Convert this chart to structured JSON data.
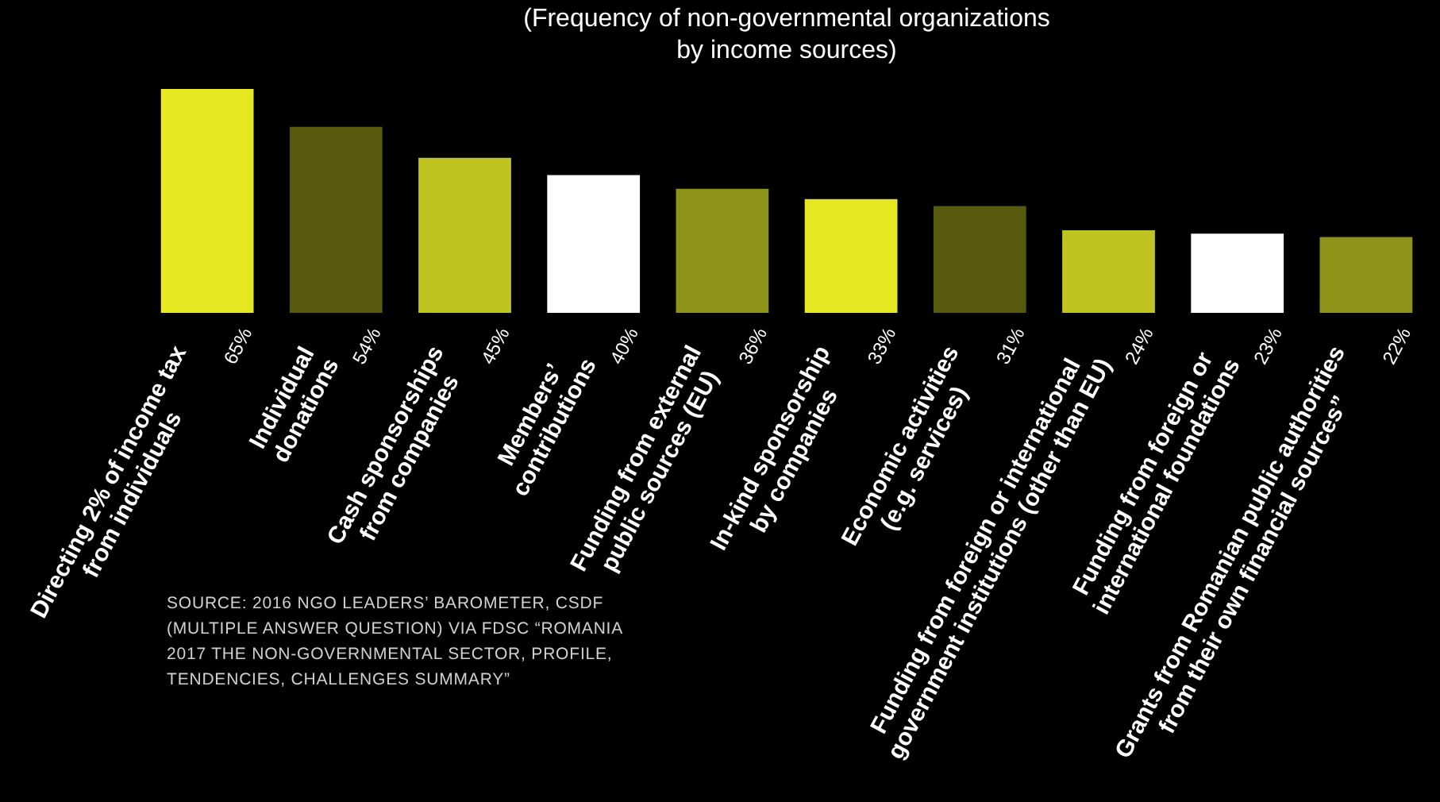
{
  "chart_data": {
    "type": "bar",
    "subtitle": "(Frequency of non-governmental organizations\nby income sources)",
    "categories": [
      "Directing 2% of income tax\nfrom individuals",
      "Individual\ndonations",
      "Cash sponsorships\nfrom companies",
      "Members’\ncontributions",
      "Funding from external\npublic sources (EU)",
      "In-kind sponsorship\nby companies",
      "Economic activities\n(e.g. services)",
      "Funding from foreign or international\ngovernment institutions (other than EU)",
      "Funding from foreign or\ninternational foundations",
      "Grants from Romanian public authorities\nfrom their own financial sources”"
    ],
    "values": [
      65,
      54,
      45,
      40,
      36,
      33,
      31,
      24,
      23,
      22
    ],
    "value_labels": [
      "65%",
      "54%",
      "45%",
      "40%",
      "36%",
      "33%",
      "31%",
      "24%",
      "23%",
      "22%"
    ],
    "colors": [
      "#e6e822",
      "#575a0d",
      "#c0c421",
      "#ffffff",
      "#8d9219",
      "#e6e822",
      "#575a0d",
      "#c0c421",
      "#ffffff",
      "#8d9219"
    ],
    "legend": false,
    "grid": false,
    "annotations": [
      "SOURCE: 2016 NGO LEADERS’ BAROMETER, CSDF (MULTIPLE ANSWER QUESTION) VIA FDSC “ROMANIA 2017 THE NON-GOVERNMENTAL SECTOR, PROFILE, TENDENCIES, CHALLENGES SUMMARY”"
    ]
  }
}
